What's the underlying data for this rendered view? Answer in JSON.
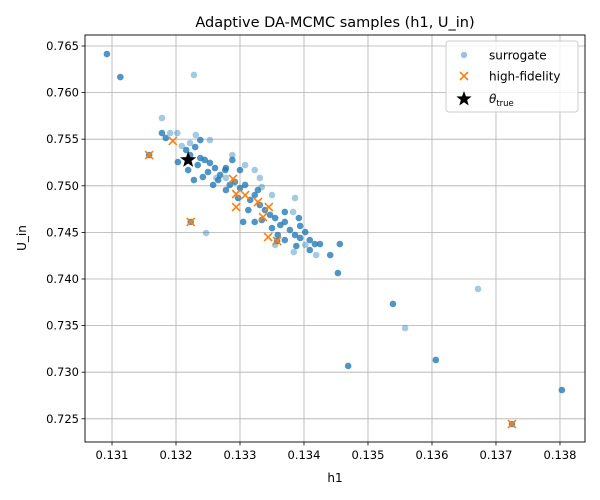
{
  "chart_data": {
    "type": "scatter",
    "title": "Adaptive DA-MCMC samples (h1, U_in)",
    "xlabel": "h1",
    "ylabel": "U_in",
    "xlim": [
      0.130578,
      0.138391
    ],
    "ylim": [
      0.72251,
      0.76618
    ],
    "xticks": [
      "0.131",
      "0.132",
      "0.133",
      "0.134",
      "0.135",
      "0.136",
      "0.137",
      "0.138"
    ],
    "yticks": [
      "0.725",
      "0.730",
      "0.735",
      "0.740",
      "0.745",
      "0.750",
      "0.755",
      "0.760",
      "0.765"
    ],
    "grid": true,
    "legend_position": "top-right",
    "colors": {
      "surrogate": "#1f77b4",
      "high_fidelity": "#ff7f0e",
      "theta_true": "#000000"
    },
    "series": [
      {
        "name": "surrogate",
        "marker": "circle",
        "note_repeats": "third value = number of overlapping repeated samples",
        "points": [
          [
            0.13092,
            0.76414,
            3
          ],
          [
            0.13113,
            0.76167,
            3
          ],
          [
            0.13228,
            0.76189,
            1
          ],
          [
            0.13178,
            0.75727,
            1
          ],
          [
            0.13453,
            0.74064,
            3
          ],
          [
            0.13539,
            0.73732,
            3
          ],
          [
            0.13558,
            0.73474,
            1
          ],
          [
            0.13469,
            0.73067,
            3
          ],
          [
            0.13606,
            0.73131,
            3
          ],
          [
            0.13672,
            0.73893,
            1
          ],
          [
            0.13803,
            0.72809,
            3
          ],
          [
            0.13725,
            0.72444,
            3
          ],
          [
            0.13223,
            0.74612,
            3
          ],
          [
            0.13158,
            0.7533,
            3
          ],
          [
            0.13358,
            0.74408,
            3
          ],
          [
            0.13216,
            0.75384,
            3
          ],
          [
            0.13222,
            0.7533,
            3
          ],
          [
            0.1323,
            0.75416,
            3
          ],
          [
            0.13238,
            0.75298,
            3
          ],
          [
            0.13245,
            0.75277,
            3
          ],
          [
            0.13234,
            0.75223,
            3
          ],
          [
            0.13253,
            0.75245,
            3
          ],
          [
            0.13261,
            0.75191,
            3
          ],
          [
            0.1325,
            0.75148,
            3
          ],
          [
            0.13269,
            0.75116,
            3
          ],
          [
            0.13277,
            0.75169,
            3
          ],
          [
            0.13266,
            0.75062,
            3
          ],
          [
            0.13284,
            0.75009,
            3
          ],
          [
            0.13278,
            0.74955,
            3
          ],
          [
            0.13292,
            0.75041,
            3
          ],
          [
            0.133,
            0.74976,
            3
          ],
          [
            0.13308,
            0.75009,
            3
          ],
          [
            0.13297,
            0.74869,
            3
          ],
          [
            0.13316,
            0.74848,
            3
          ],
          [
            0.13323,
            0.74901,
            3
          ],
          [
            0.13331,
            0.74794,
            3
          ],
          [
            0.13313,
            0.7474,
            3
          ],
          [
            0.13339,
            0.7474,
            3
          ],
          [
            0.13347,
            0.74687,
            3
          ],
          [
            0.13334,
            0.74633,
            3
          ],
          [
            0.13355,
            0.74654,
            3
          ],
          [
            0.13363,
            0.74579,
            3
          ],
          [
            0.1335,
            0.74547,
            3
          ],
          [
            0.1337,
            0.74612,
            3
          ],
          [
            0.13378,
            0.74526,
            3
          ],
          [
            0.13359,
            0.74472,
            3
          ],
          [
            0.13394,
            0.7444,
            3
          ],
          [
            0.13402,
            0.74504,
            3
          ],
          [
            0.13409,
            0.74418,
            3
          ],
          [
            0.13425,
            0.74375,
            3
          ],
          [
            0.13394,
            0.74569,
            3
          ],
          [
            0.13242,
            0.75094,
            3
          ],
          [
            0.13258,
            0.75009,
            3
          ],
          [
            0.13305,
            0.74612,
            3
          ],
          [
            0.13323,
            0.74612,
            3
          ],
          [
            0.13278,
            0.75191,
            3
          ],
          [
            0.13288,
            0.75277,
            3
          ],
          [
            0.13228,
            0.75062,
            3
          ],
          [
            0.13178,
            0.75566,
            3
          ],
          [
            0.13184,
            0.75513,
            3
          ],
          [
            0.13203,
            0.75255,
            3
          ],
          [
            0.13219,
            0.75169,
            3
          ],
          [
            0.13238,
            0.75491,
            3
          ],
          [
            0.133,
            0.75169,
            3
          ],
          [
            0.13328,
            0.74955,
            3
          ],
          [
            0.1337,
            0.74418,
            3
          ],
          [
            0.13386,
            0.74472,
            3
          ],
          [
            0.13417,
            0.74375,
            3
          ],
          [
            0.13409,
            0.74311,
            3
          ],
          [
            0.1337,
            0.74719,
            3
          ],
          [
            0.13392,
            0.74654,
            3
          ],
          [
            0.13388,
            0.74354,
            3
          ],
          [
            0.13456,
            0.74375,
            3
          ],
          [
            0.13441,
            0.74257,
            3
          ],
          [
            0.13191,
            0.75566,
            1
          ],
          [
            0.13202,
            0.75566,
            1
          ],
          [
            0.13231,
            0.75545,
            1
          ],
          [
            0.13253,
            0.75491,
            1
          ],
          [
            0.13209,
            0.75427,
            1
          ],
          [
            0.13222,
            0.75459,
            1
          ],
          [
            0.13288,
            0.7533,
            1
          ],
          [
            0.13323,
            0.75169,
            1
          ],
          [
            0.13331,
            0.75084,
            1
          ],
          [
            0.1335,
            0.74901,
            1
          ],
          [
            0.13386,
            0.74869,
            1
          ],
          [
            0.13383,
            0.74719,
            1
          ],
          [
            0.13402,
            0.74365,
            1
          ],
          [
            0.13419,
            0.74257,
            1
          ],
          [
            0.13247,
            0.74493,
            1
          ],
          [
            0.13384,
            0.74289,
            1
          ],
          [
            0.13355,
            0.74365,
            1
          ],
          [
            0.13334,
            0.74987,
            1
          ],
          [
            0.13308,
            0.75223,
            1
          ],
          [
            0.13278,
            0.75084,
            1
          ],
          [
            0.13263,
            0.75084,
            1
          ]
        ]
      },
      {
        "name": "high-fidelity",
        "marker": "x",
        "points": [
          [
            0.13289,
            0.75073
          ],
          [
            0.13294,
            0.74912
          ],
          [
            0.13308,
            0.74901
          ],
          [
            0.13328,
            0.74826
          ],
          [
            0.13345,
            0.74772
          ],
          [
            0.13336,
            0.74665
          ],
          [
            0.13294,
            0.74772
          ],
          [
            0.13344,
            0.7445
          ],
          [
            0.13358,
            0.74408
          ],
          [
            0.13223,
            0.74612
          ],
          [
            0.13158,
            0.7533
          ],
          [
            0.13195,
            0.75481
          ],
          [
            0.13725,
            0.72444
          ]
        ]
      },
      {
        "name": "θ_true",
        "marker": "star",
        "points": [
          [
            0.13219,
            0.75277
          ]
        ]
      }
    ],
    "legend": {
      "surrogate": "surrogate",
      "high_fidelity": "high-fidelity",
      "theta_main": "θ",
      "theta_sub": "true"
    }
  }
}
